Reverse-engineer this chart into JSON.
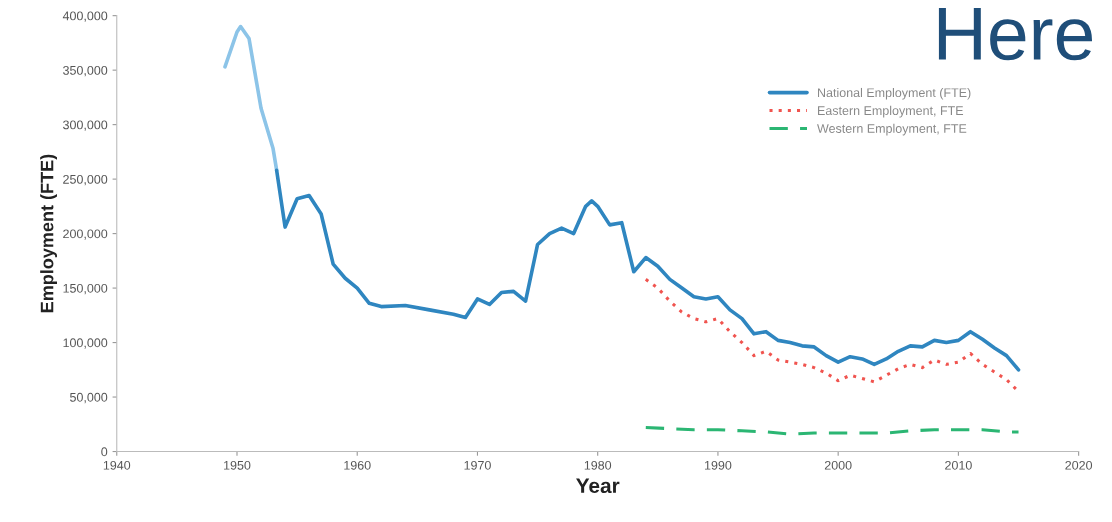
{
  "chart_data": {
    "type": "line",
    "xlabel": "Year",
    "ylabel": "Employment (FTE)",
    "annotations": [
      "Here"
    ],
    "xlim": [
      1940,
      2020
    ],
    "xticks": [
      1940,
      1950,
      1960,
      1970,
      1980,
      1990,
      2000,
      2010,
      2020
    ],
    "ylim": [
      0,
      400000
    ],
    "yticks": [
      {
        "value": 0,
        "label": "0"
      },
      {
        "value": 50000,
        "label": "50,000"
      },
      {
        "value": 100000,
        "label": "100,000"
      },
      {
        "value": 150000,
        "label": "150,000"
      },
      {
        "value": 200000,
        "label": "200,000"
      },
      {
        "value": 250000,
        "label": "250,000"
      },
      {
        "value": 300000,
        "label": "300,000"
      },
      {
        "value": 350000,
        "label": "350,000"
      },
      {
        "value": 400000,
        "label": "400,000"
      }
    ],
    "grid": false,
    "legend": "top right",
    "marker": "none",
    "series": [
      {
        "color": "#8cc4e8",
        "line_style": "solid",
        "x": [
          1949,
          1950,
          1950.3,
          1951,
          1952,
          1953,
          1953.3
        ],
        "values": [
          353000,
          385000,
          390000,
          379000,
          315000,
          278000,
          258000
        ]
      },
      {
        "name": "National Employment (FTE)",
        "color": "#2f86c0",
        "line_style": "solid",
        "x": [
          1953.3,
          1954,
          1955,
          1956,
          1957,
          1958,
          1959,
          1960,
          1961,
          1962,
          1964,
          1966,
          1968,
          1969,
          1970,
          1971,
          1972,
          1973,
          1974,
          1975,
          1976,
          1977,
          1978,
          1979,
          1979.5,
          1980,
          1981,
          1982,
          1983,
          1984,
          1985,
          1986,
          1987,
          1988,
          1989,
          1990,
          1991,
          1992,
          1993,
          1994,
          1995,
          1996,
          1997,
          1998,
          1999,
          2000,
          2001,
          2002,
          2003,
          2004,
          2005,
          2006,
          2007,
          2008,
          2009,
          2010,
          2011,
          2012,
          2013,
          2014,
          2015
        ],
        "values": [
          258000,
          206000,
          232000,
          235000,
          218000,
          172000,
          159000,
          150000,
          136000,
          133000,
          134000,
          130000,
          126000,
          123000,
          140000,
          135000,
          146000,
          147000,
          138000,
          190000,
          200000,
          205000,
          200000,
          225000,
          230000,
          225000,
          208000,
          210000,
          165000,
          178000,
          170000,
          158000,
          150000,
          142000,
          140000,
          142000,
          130000,
          122000,
          108000,
          110000,
          102000,
          100000,
          97000,
          96000,
          88000,
          82000,
          87000,
          85000,
          80000,
          85000,
          92000,
          97000,
          96000,
          102000,
          100000,
          102000,
          110000,
          103000,
          95000,
          88000,
          75000
        ]
      },
      {
        "name": "Eastern Employment, FTE",
        "color": "#f0544f",
        "line_style": "dotted",
        "x": [
          1984,
          1985,
          1986,
          1987,
          1988,
          1989,
          1990,
          1991,
          1992,
          1993,
          1994,
          1995,
          1996,
          1997,
          1998,
          1999,
          2000,
          2001,
          2002,
          2003,
          2004,
          2005,
          2006,
          2007,
          2008,
          2009,
          2010,
          2011,
          2012,
          2013,
          2014,
          2015
        ],
        "values": [
          158000,
          150000,
          138000,
          128000,
          122000,
          119000,
          122000,
          110000,
          100000,
          88000,
          92000,
          84000,
          82000,
          80000,
          77000,
          72000,
          65000,
          70000,
          67000,
          64000,
          70000,
          76000,
          80000,
          77000,
          84000,
          80000,
          82000,
          90000,
          80000,
          73000,
          66000,
          55000
        ]
      },
      {
        "name": "Western Employment, FTE",
        "color": "#2bb673",
        "line_style": "dashed",
        "x": [
          1984,
          1986,
          1988,
          1990,
          1992,
          1994,
          1996,
          1998,
          2000,
          2002,
          2004,
          2006,
          2008,
          2010,
          2012,
          2014,
          2015
        ],
        "values": [
          22000,
          21000,
          20000,
          20000,
          19000,
          18000,
          16000,
          17000,
          17000,
          17000,
          17000,
          19000,
          20000,
          20000,
          20000,
          18000,
          18000
        ]
      }
    ]
  }
}
